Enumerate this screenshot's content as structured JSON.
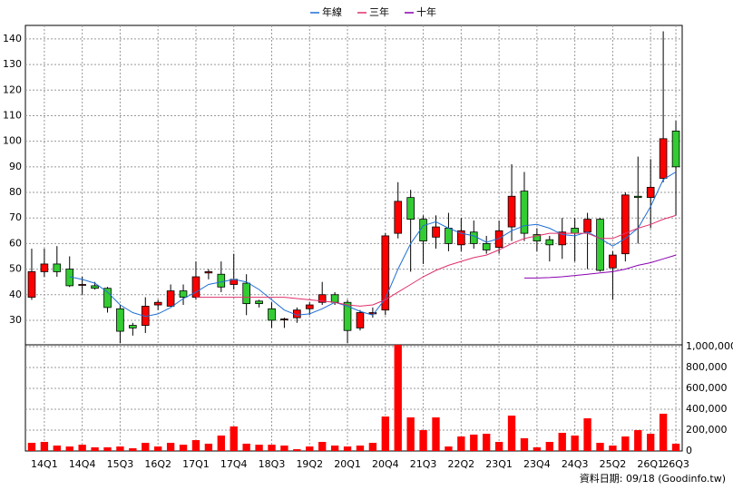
{
  "chart_data": {
    "type": "candlestick",
    "categories": [
      null,
      "14Q1",
      null,
      null,
      "14Q4",
      null,
      null,
      "15Q3",
      null,
      null,
      "16Q2",
      null,
      null,
      "17Q1",
      null,
      null,
      "17Q4",
      null,
      null,
      "18Q3",
      null,
      null,
      "19Q2",
      null,
      null,
      "20Q1",
      null,
      null,
      "20Q4",
      null,
      null,
      "21Q3",
      null,
      null,
      "22Q2",
      null,
      null,
      "23Q1",
      null,
      null,
      "23Q4",
      null,
      null,
      "24Q3",
      null,
      null,
      "25Q2",
      null,
      null,
      "26Q1",
      null,
      "26Q3"
    ],
    "open": [
      39,
      49,
      52,
      50,
      44,
      43.5,
      42.5,
      34.5,
      28,
      28,
      36,
      35.5,
      41.5,
      39,
      48.5,
      48,
      44,
      44.5,
      37.5,
      34.5,
      30.5,
      31,
      34.5,
      37,
      40,
      37,
      27,
      32.5,
      34,
      64,
      78,
      69.5,
      62.5,
      66,
      59.5,
      64.5,
      60,
      58.5,
      66.5,
      80.5,
      63.5,
      61.5,
      59.5,
      66,
      64.5,
      69.5,
      50.5,
      56,
      78.5,
      78,
      85.5,
      104
    ],
    "high": [
      58,
      58,
      59,
      55,
      47,
      45,
      43,
      36,
      29,
      39,
      38,
      44,
      44,
      53,
      50,
      53,
      56,
      48,
      38,
      37,
      31,
      35,
      37,
      45,
      41,
      38,
      34,
      35,
      64,
      84,
      81,
      71,
      71,
      72,
      70,
      69,
      63,
      69,
      91,
      88,
      66,
      63,
      70,
      70,
      72,
      70,
      57,
      80,
      94,
      93,
      143,
      108
    ],
    "low": [
      38,
      47,
      47,
      43,
      40,
      42,
      33,
      21,
      24,
      25,
      34,
      36,
      36,
      38,
      46,
      41,
      42,
      32,
      35,
      27,
      27,
      29,
      32,
      36,
      36,
      21,
      26,
      31,
      32,
      62,
      49,
      52,
      58,
      57,
      57,
      58,
      56,
      56,
      61,
      61,
      57,
      53,
      54,
      53,
      50,
      49,
      38,
      53,
      60,
      66,
      84,
      71
    ],
    "close": [
      49,
      52,
      49,
      43.5,
      44,
      42.5,
      35,
      25.7,
      27,
      35.5,
      37,
      41.5,
      39,
      47,
      49,
      43,
      46,
      36.5,
      36.5,
      30,
      30.5,
      34,
      36,
      40,
      37,
      26,
      33,
      33,
      63,
      76.5,
      69.5,
      61,
      66.5,
      60,
      65,
      60,
      57.5,
      65,
      78.5,
      64,
      61,
      59.5,
      64.5,
      64,
      69.5,
      49.5,
      55.5,
      79,
      78,
      82,
      101,
      90
    ],
    "up_color": "#ff0000",
    "down_color": "#33cc33",
    "series": [
      {
        "name": "年線",
        "color": "#1f6fd6",
        "values": [
          null,
          null,
          null,
          47,
          46,
          44.5,
          41,
          36,
          33,
          31.5,
          32.5,
          35,
          38.5,
          41,
          44,
          45,
          46,
          45,
          42,
          38,
          34,
          32,
          32.5,
          34.5,
          37,
          35.5,
          33.5,
          32,
          38.5,
          50,
          60,
          67,
          68.5,
          66,
          64,
          63,
          60.5,
          62,
          65,
          67,
          67.5,
          66,
          63.5,
          63,
          64.5,
          62,
          59,
          62,
          66,
          74.5,
          85,
          88
        ]
      },
      {
        "name": "三年",
        "color": "#e0306a",
        "values": [
          null,
          null,
          null,
          null,
          null,
          null,
          null,
          null,
          null,
          null,
          null,
          null,
          null,
          39,
          39,
          39,
          39,
          39,
          39,
          39,
          39,
          38.5,
          38,
          37.5,
          37,
          36,
          35.5,
          36,
          38,
          41,
          44,
          47,
          49.5,
          51.5,
          53,
          54.5,
          55.5,
          57.5,
          60,
          62,
          63,
          64,
          64,
          64,
          64,
          62,
          62,
          64,
          66,
          67.5,
          69.5,
          71
        ]
      },
      {
        "name": "十年",
        "color": "#8a00b0",
        "values": [
          null,
          null,
          null,
          null,
          null,
          null,
          null,
          null,
          null,
          null,
          null,
          null,
          null,
          null,
          null,
          null,
          null,
          null,
          null,
          null,
          null,
          null,
          null,
          null,
          null,
          null,
          null,
          null,
          null,
          null,
          null,
          null,
          null,
          null,
          null,
          null,
          null,
          null,
          null,
          46.5,
          46.5,
          46.7,
          47,
          47.5,
          48,
          48.5,
          49,
          50,
          51.5,
          52.5,
          54,
          55.5
        ]
      }
    ],
    "ylim": [
      20.4,
      145.3
    ],
    "yticks": [
      30,
      40,
      50,
      60,
      70,
      80,
      90,
      100,
      110,
      120,
      130,
      140
    ],
    "grid": true,
    "volume": {
      "color": "#ff0000",
      "values": [
        78000,
        87000,
        52000,
        43000,
        60000,
        35000,
        35000,
        43000,
        26000,
        78000,
        43000,
        78000,
        60000,
        104000,
        70000,
        148000,
        235000,
        70000,
        60000,
        60000,
        52000,
        17000,
        43000,
        87000,
        52000,
        43000,
        52000,
        78000,
        330000,
        1017000,
        322000,
        200000,
        322000,
        43000,
        139000,
        157000,
        165000,
        87000,
        339000,
        122000,
        35000,
        87000,
        174000,
        148000,
        313000,
        78000,
        52000,
        139000,
        200000,
        165000,
        357000,
        70000
      ],
      "ylim": [
        0,
        1017000
      ],
      "yticks": [
        0,
        {
          "value": 200000,
          "label": "200,000"
        },
        {
          "value": 400000,
          "label": "400,000"
        },
        {
          "value": 600000,
          "label": "600,000"
        },
        {
          "value": 800000,
          "label": "800,000"
        },
        {
          "value": 1000000,
          "label": "1,000,000"
        }
      ]
    },
    "note": "資料日期: 09/18 (Goodinfo.tw)"
  }
}
